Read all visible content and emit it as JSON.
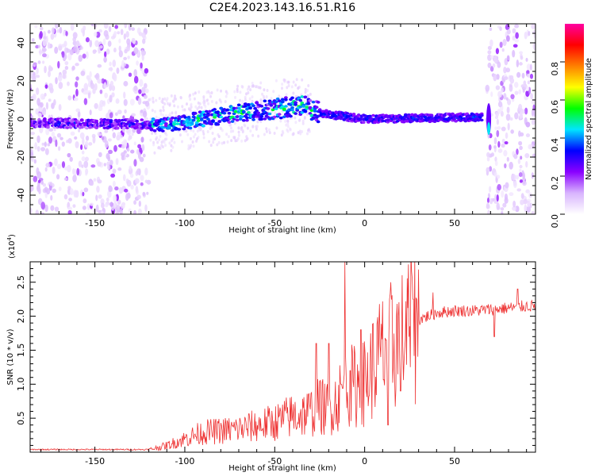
{
  "chart_data": [
    {
      "type": "heatmap",
      "title": "C2E4.2023.143.16.51.R16",
      "xlabel": "Height of straight line (km)",
      "ylabel": "Frequency (Hz)",
      "xlim": [
        -186,
        95
      ],
      "ylim": [
        -50,
        50
      ],
      "xticks": [
        "-150",
        "-100",
        "-50",
        "0",
        "50"
      ],
      "xtick_values": [
        -150,
        -100,
        -50,
        0,
        50
      ],
      "yticks": [
        "-40",
        "-20",
        "0",
        "20",
        "40"
      ],
      "ytick_values": [
        -40,
        -20,
        0,
        20,
        40
      ],
      "colorbar": {
        "label": "Normalized spectral amplitude",
        "ticks": [
          "0.0",
          "0.2",
          "0.4",
          "0.6",
          "0.8"
        ],
        "tick_values": [
          0.0,
          0.2,
          0.4,
          0.6,
          0.8
        ],
        "range": [
          0,
          1
        ],
        "colors": [
          "#ffffff",
          "#d8b4fe",
          "#8a00ff",
          "#0000ff",
          "#00e5ff",
          "#00ff00",
          "#ffff00",
          "#ff8000",
          "#ff0000",
          "#ff00a0"
        ]
      },
      "features": {
        "noise_regions_km": [
          [
            -186,
            -120
          ],
          [
            68,
            95
          ]
        ],
        "band_centre_hz": [
          [
            -180,
            -2
          ],
          [
            -110,
            -3
          ],
          [
            -70,
            3
          ],
          [
            -35,
            7
          ],
          [
            -25,
            3
          ],
          [
            0,
            0
          ],
          [
            65,
            1
          ]
        ],
        "band_end_km": 66,
        "spike_km": 69
      }
    },
    {
      "type": "line",
      "title": "",
      "xlabel": "Height of straight line (km)",
      "ylabel": "SNR (10 * v/v)",
      "scale_label": "(x10",
      "scale_exp": "4",
      "scale_close": ")",
      "xlim": [
        -186,
        95
      ],
      "ylim": [
        0,
        2.8
      ],
      "xticks": [
        "-150",
        "-100",
        "-50",
        "0",
        "50"
      ],
      "xtick_values": [
        -150,
        -100,
        -50,
        0,
        50
      ],
      "yticks": [
        "0.5",
        "1.0",
        "1.5",
        "2.0",
        "2.5"
      ],
      "ytick_values": [
        0.5,
        1.0,
        1.5,
        2.0,
        2.5
      ],
      "series": [
        {
          "name": "SNR",
          "color": "#ee3333",
          "envelope_x": [
            -186,
            -120,
            -110,
            -100,
            -90,
            -80,
            -70,
            -60,
            -50,
            -40,
            -30,
            -25,
            -20,
            -15,
            -12,
            -10,
            -5,
            0,
            5,
            10,
            15,
            20,
            25,
            30,
            35,
            40,
            50,
            60,
            70,
            80,
            90,
            95
          ],
          "envelope_y": [
            0.04,
            0.04,
            0.1,
            0.2,
            0.3,
            0.32,
            0.35,
            0.4,
            0.45,
            0.55,
            0.6,
            0.7,
            0.65,
            0.8,
            0.95,
            1.0,
            1.0,
            1.05,
            1.3,
            1.5,
            1.6,
            1.7,
            1.85,
            1.95,
            2.0,
            2.05,
            2.08,
            2.08,
            2.1,
            2.12,
            2.15,
            2.15
          ],
          "spikes": [
            [
              -27,
              1.6
            ],
            [
              -20,
              1.6
            ],
            [
              -11,
              2.8
            ],
            [
              -8,
              1.2
            ],
            [
              -2,
              1.8
            ],
            [
              12,
              1.65
            ],
            [
              13,
              0.4
            ],
            [
              20,
              0.9
            ],
            [
              27,
              2.25
            ],
            [
              38,
              2.35
            ],
            [
              72,
              1.7
            ],
            [
              85,
              2.4
            ]
          ]
        }
      ]
    }
  ]
}
